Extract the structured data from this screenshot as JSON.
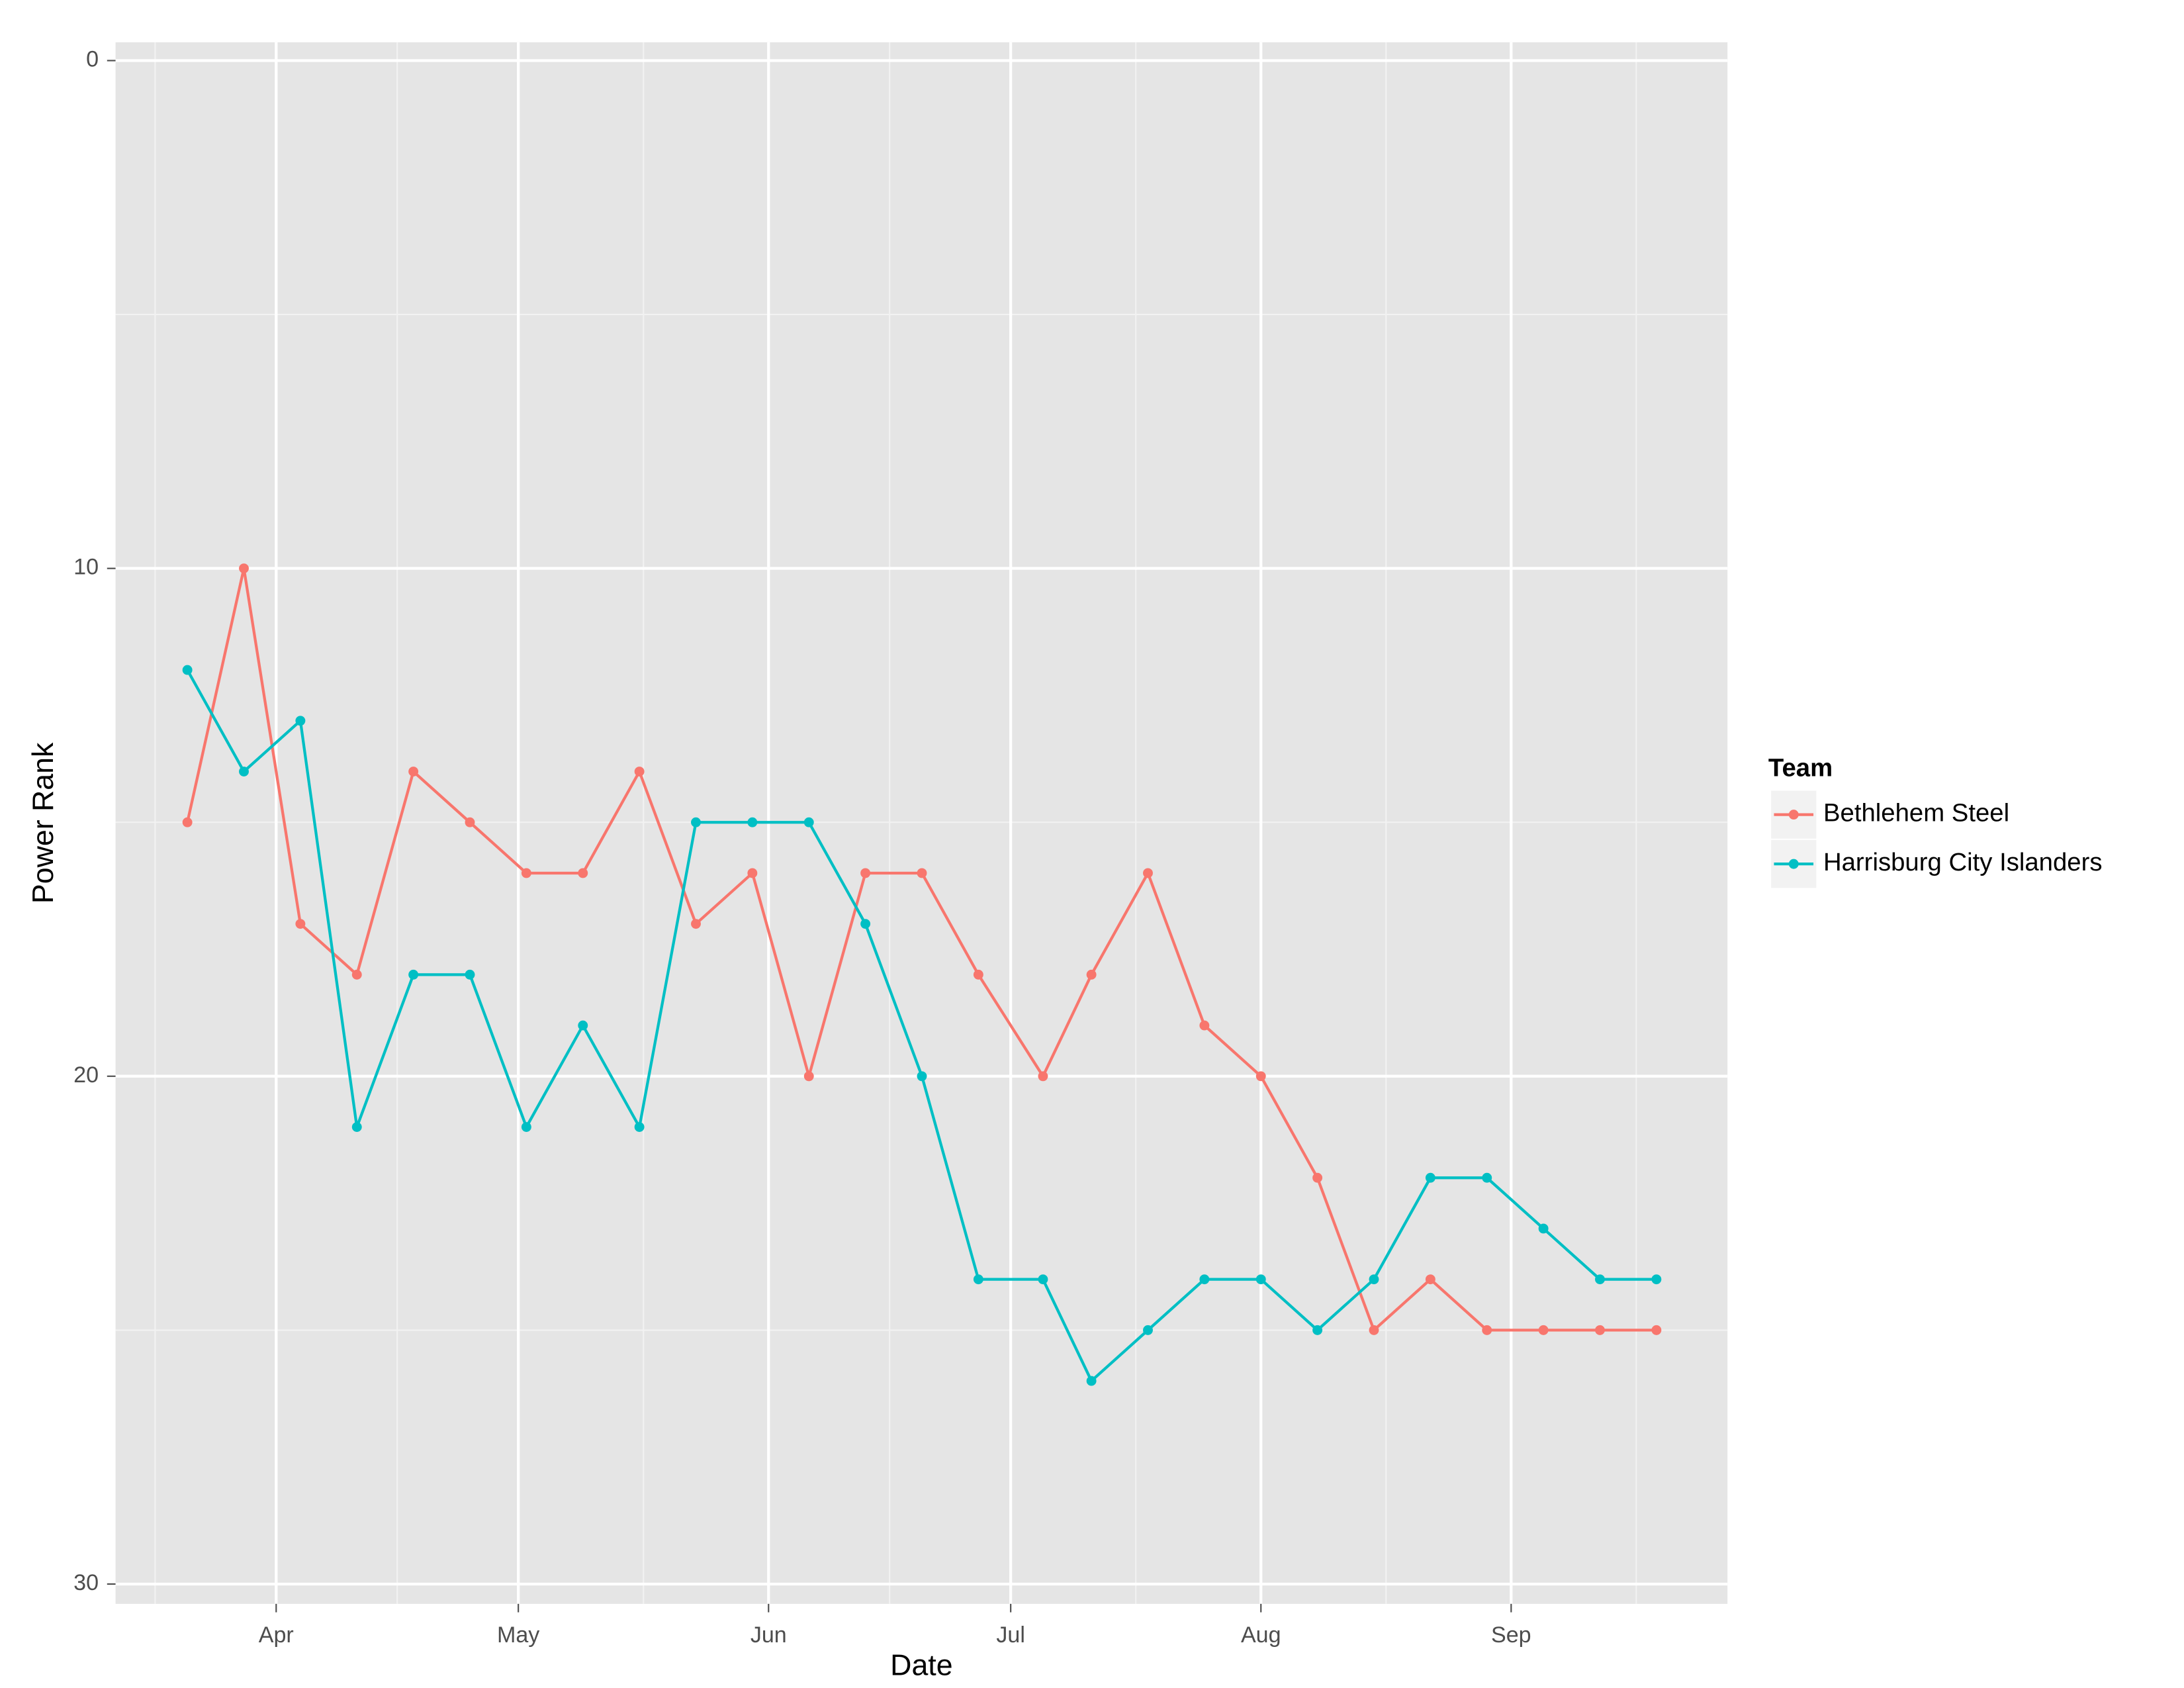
{
  "chart_data": {
    "type": "line",
    "x_label": "Date",
    "y_label": "Power Rank",
    "legend_title": "Team",
    "legend_position": "right",
    "grid": true,
    "minor_grid": true,
    "y_reversed": true,
    "x": [
      80,
      87,
      94,
      101,
      108,
      115,
      122,
      129,
      136,
      143,
      150,
      157,
      164,
      171,
      178,
      186,
      192,
      199,
      206,
      213,
      220,
      227,
      234,
      241,
      248,
      255,
      262
    ],
    "xlim": [
      71.1,
      270.8
    ],
    "xticks": [
      {
        "value": 91,
        "label": "Apr"
      },
      {
        "value": 121,
        "label": "May"
      },
      {
        "value": 152,
        "label": "Jun"
      },
      {
        "value": 182,
        "label": "Jul"
      },
      {
        "value": 213,
        "label": "Aug"
      },
      {
        "value": 244,
        "label": "Sep"
      }
    ],
    "ylim": [
      -0.36,
      30.39
    ],
    "yticks": [
      0,
      10,
      20,
      30
    ],
    "series": [
      {
        "name": "Bethlehem Steel",
        "color": "#F8766D",
        "values": [
          15,
          10,
          17,
          18,
          14,
          15,
          16,
          16,
          14,
          17,
          16,
          20,
          16,
          16,
          18,
          20,
          18,
          16,
          19,
          20,
          22,
          25,
          24,
          25,
          25,
          25,
          25
        ]
      },
      {
        "name": "Harrisburg City Islanders",
        "color": "#00BFC4",
        "values": [
          12,
          14,
          13,
          21,
          18,
          18,
          21,
          19,
          21,
          15,
          15,
          15,
          17,
          20,
          24,
          24,
          26,
          25,
          24,
          24,
          25,
          24,
          22,
          22,
          23,
          24,
          24
        ]
      }
    ]
  }
}
